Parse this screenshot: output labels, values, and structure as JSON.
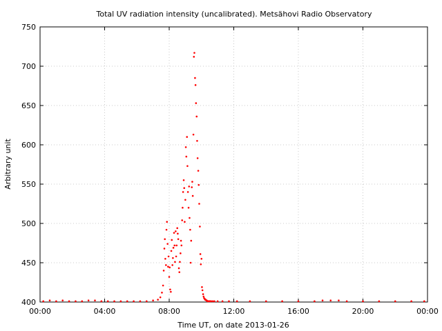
{
  "chart_data": {
    "type": "scatter",
    "title": "Total UV radiation intensity (uncalibrated). Metsähovi Radio Observatory",
    "xlabel": "Time UT, on date 2013-01-26",
    "ylabel": "Arbitrary unit",
    "xlim": [
      0,
      24
    ],
    "ylim": [
      400,
      750
    ],
    "x_ticks": [
      0,
      4,
      8,
      12,
      16,
      20,
      24
    ],
    "x_tick_labels": [
      "00:00",
      "04:00",
      "08:00",
      "12:00",
      "16:00",
      "20:00",
      "00:00"
    ],
    "y_ticks": [
      400,
      450,
      500,
      550,
      600,
      650,
      700,
      750
    ],
    "y_tick_labels": [
      "400",
      "450",
      "500",
      "550",
      "600",
      "650",
      "700",
      "750"
    ],
    "grid": true,
    "marker_color": "#ff0000",
    "series": [
      {
        "x": [
          0.2,
          0.6,
          1.0,
          1.4,
          1.8,
          2.2,
          2.6,
          3.0,
          3.4,
          3.8,
          4.2,
          4.6,
          5.0,
          5.4,
          5.8,
          6.2,
          6.6,
          7.0,
          7.3,
          7.45,
          7.55,
          7.62,
          7.66,
          7.7,
          7.73,
          7.76,
          7.8,
          7.83,
          7.86,
          7.9,
          7.93,
          7.96,
          8.0,
          8.03,
          8.06,
          8.1,
          8.13,
          8.16,
          8.2,
          8.23,
          8.26,
          8.3,
          8.33,
          8.36,
          8.4,
          8.43,
          8.46,
          8.5,
          8.53,
          8.56,
          8.6,
          8.63,
          8.66,
          8.7,
          8.73,
          8.76,
          8.8,
          8.83,
          8.86,
          8.9,
          8.93,
          8.96,
          9.0,
          9.03,
          9.06,
          9.1,
          9.13,
          9.16,
          9.2,
          9.23,
          9.26,
          9.3,
          9.33,
          9.36,
          9.4,
          9.43,
          9.46,
          9.5,
          9.53,
          9.56,
          9.6,
          9.63,
          9.66,
          9.7,
          9.73,
          9.76,
          9.8,
          9.83,
          9.86,
          9.9,
          9.93,
          9.96,
          10.0,
          10.03,
          10.06,
          10.1,
          10.13,
          10.16,
          10.2,
          10.23,
          10.26,
          10.3,
          10.33,
          10.36,
          10.4,
          10.43,
          10.46,
          10.5,
          10.55,
          10.6,
          10.7,
          10.8,
          11.0,
          11.3,
          11.7,
          12.2,
          13.0,
          14.0,
          15.0,
          16.0,
          17.0,
          17.5,
          18.0,
          18.5,
          19.0,
          20.0,
          21.0,
          22.0,
          23.0,
          23.8
        ],
        "y": [
          401,
          402,
          401,
          402,
          401,
          401,
          401,
          402,
          402,
          401,
          401,
          401,
          401,
          401,
          401,
          401,
          401,
          402,
          403,
          406,
          412,
          421,
          440,
          468,
          480,
          455,
          447,
          492,
          502,
          474,
          445,
          458,
          432,
          444,
          416,
          413,
          465,
          479,
          447,
          456,
          469,
          488,
          472,
          451,
          490,
          458,
          472,
          494,
          487,
          480,
          443,
          438,
          451,
          462,
          478,
          472,
          504,
          520,
          540,
          555,
          545,
          502,
          530,
          597,
          585,
          610,
          573,
          540,
          520,
          547,
          507,
          492,
          450,
          478,
          546,
          553,
          535,
          613,
          712,
          717,
          685,
          676,
          653,
          636,
          605,
          583,
          567,
          549,
          525,
          496,
          461,
          448,
          455,
          419,
          415,
          410,
          407,
          405,
          404,
          403,
          403,
          402,
          402,
          401,
          401,
          401,
          401,
          401,
          401,
          401,
          401,
          401,
          401,
          401,
          401,
          401,
          401,
          401,
          401,
          401,
          401,
          402,
          402,
          402,
          401,
          401,
          401,
          401,
          401,
          401
        ]
      }
    ]
  }
}
